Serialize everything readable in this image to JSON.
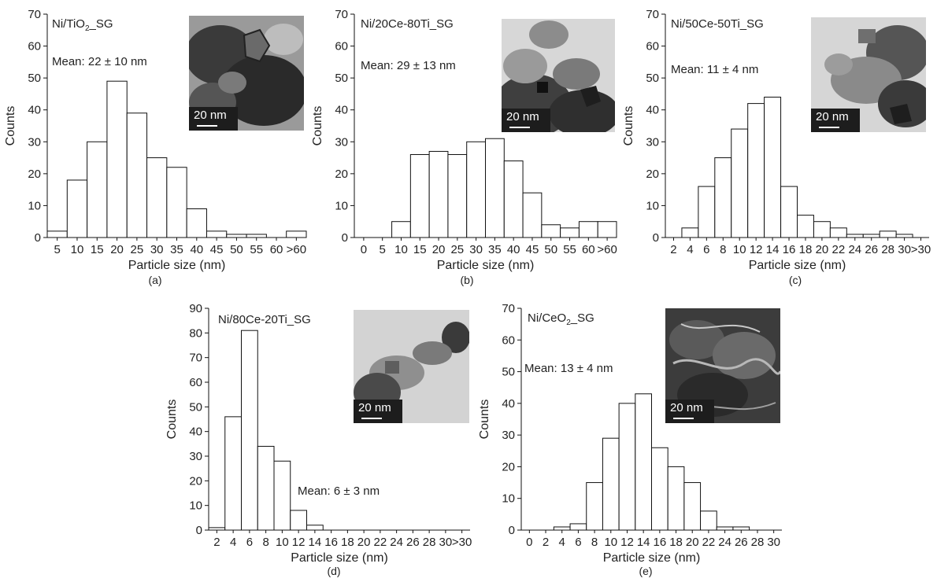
{
  "chart_data": [
    {
      "type": "bar",
      "panel_label": "(a)",
      "sample": {
        "text": "Ni/TiO",
        "sub": "2",
        "tail": "_SG"
      },
      "mean": "Mean: 22 ± 10 nm",
      "scale": "20 nm",
      "categories": [
        "5",
        "10",
        "15",
        "20",
        "25",
        "30",
        "35",
        "40",
        "45",
        "50",
        "55",
        "60",
        ">60"
      ],
      "values": [
        2,
        18,
        30,
        49,
        39,
        25,
        22,
        9,
        2,
        1,
        1,
        0,
        2
      ],
      "xlabel": "Particle size (nm)",
      "ylabel": "Counts",
      "ylim": [
        0,
        70
      ],
      "yticks": [
        0,
        10,
        20,
        30,
        40,
        50,
        60,
        70
      ]
    },
    {
      "type": "bar",
      "panel_label": "(b)",
      "sample": {
        "text": "Ni/20Ce-80Ti_SG",
        "sub": "",
        "tail": ""
      },
      "mean": "Mean: 29 ± 13 nm",
      "scale": "20 nm",
      "categories": [
        "0",
        "5",
        "10",
        "15",
        "20",
        "25",
        "30",
        "35",
        "40",
        "45",
        "50",
        "55",
        "60",
        ">60"
      ],
      "values": [
        0,
        0,
        5,
        26,
        27,
        26,
        30,
        31,
        24,
        14,
        4,
        3,
        5,
        5
      ],
      "xlabel": "Particle size (nm)",
      "ylabel": "Counts",
      "ylim": [
        0,
        70
      ],
      "yticks": [
        0,
        10,
        20,
        30,
        40,
        50,
        60,
        70
      ]
    },
    {
      "type": "bar",
      "panel_label": "(c)",
      "sample": {
        "text": "Ni/50Ce-50Ti_SG",
        "sub": "",
        "tail": ""
      },
      "mean": "Mean: 11 ± 4 nm",
      "scale": "20 nm",
      "categories": [
        "2",
        "4",
        "6",
        "8",
        "10",
        "12",
        "14",
        "16",
        "18",
        "20",
        "22",
        "24",
        "26",
        "28",
        "30",
        ">30"
      ],
      "values": [
        0,
        3,
        16,
        25,
        34,
        42,
        44,
        16,
        7,
        5,
        3,
        1,
        1,
        2,
        1,
        0
      ],
      "xlabel": "Particle size (nm)",
      "ylabel": "Counts",
      "ylim": [
        0,
        70
      ],
      "yticks": [
        0,
        10,
        20,
        30,
        40,
        50,
        60,
        70
      ]
    },
    {
      "type": "bar",
      "panel_label": "(d)",
      "sample": {
        "text": "Ni/80Ce-20Ti_SG",
        "sub": "",
        "tail": ""
      },
      "mean": "Mean: 6 ± 3 nm",
      "scale": "20 nm",
      "categories": [
        "2",
        "4",
        "6",
        "8",
        "10",
        "12",
        "14",
        "16",
        "18",
        "20",
        "22",
        "24",
        "26",
        "28",
        "30",
        ">30"
      ],
      "values": [
        1,
        46,
        81,
        34,
        28,
        8,
        2,
        0,
        0,
        0,
        0,
        0,
        0,
        0,
        0,
        0
      ],
      "xlabel": "Particle size (nm)",
      "ylabel": "Counts",
      "ylim": [
        0,
        90
      ],
      "yticks": [
        0,
        10,
        20,
        30,
        40,
        50,
        60,
        70,
        80,
        90
      ]
    },
    {
      "type": "bar",
      "panel_label": "(e)",
      "sample": {
        "text": "Ni/CeO",
        "sub": "2",
        "tail": "_SG"
      },
      "mean": "Mean: 13 ± 4 nm",
      "scale": "20 nm",
      "categories": [
        "0",
        "2",
        "4",
        "6",
        "8",
        "10",
        "12",
        "14",
        "16",
        "18",
        "20",
        "22",
        "24",
        "26",
        "28",
        "30"
      ],
      "values": [
        0,
        0,
        1,
        2,
        15,
        29,
        40,
        43,
        26,
        20,
        15,
        6,
        1,
        1,
        0,
        0
      ],
      "xlabel": "Particle size (nm)",
      "ylabel": "Counts",
      "ylim": [
        0,
        70
      ],
      "yticks": [
        0,
        10,
        20,
        30,
        40,
        50,
        60,
        70
      ]
    }
  ]
}
